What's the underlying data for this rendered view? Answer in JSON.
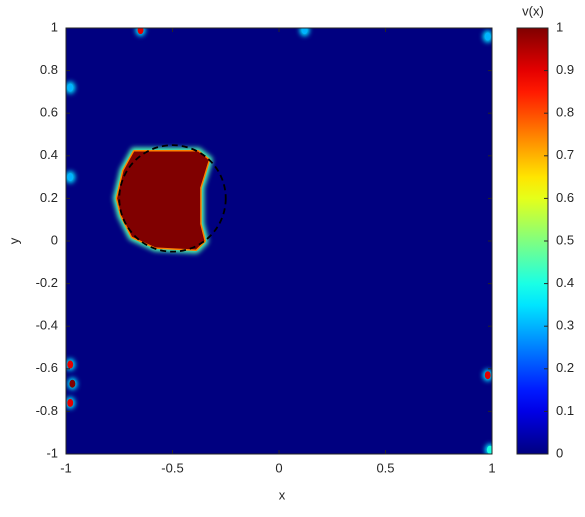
{
  "chart_data": {
    "type": "heatmap",
    "colormap": "jet",
    "xlabel": "x",
    "ylabel": "y",
    "colorbar_title": "v(x)",
    "xlim": [
      -1,
      1
    ],
    "ylim": [
      -1,
      1
    ],
    "xticks": [
      -1,
      -0.5,
      0,
      0.5,
      1
    ],
    "yticks": [
      -1,
      -0.8,
      -0.6,
      -0.4,
      -0.2,
      0,
      0.2,
      0.4,
      0.6,
      0.8,
      1
    ],
    "clim": [
      0,
      1
    ],
    "cticks": [
      0,
      0.1,
      0.2,
      0.3,
      0.4,
      0.5,
      0.6,
      0.7,
      0.8,
      0.9,
      1
    ],
    "background": 0,
    "regions": [
      {
        "value": 1,
        "points": [
          [
            -0.68,
            0.42
          ],
          [
            -0.38,
            0.42
          ],
          [
            -0.33,
            0.38
          ],
          [
            -0.37,
            0.25
          ],
          [
            -0.37,
            0.08
          ],
          [
            -0.35,
            0.0
          ],
          [
            -0.39,
            -0.04
          ],
          [
            -0.58,
            -0.03
          ],
          [
            -0.69,
            0.02
          ],
          [
            -0.74,
            0.12
          ],
          [
            -0.76,
            0.2
          ],
          [
            -0.73,
            0.33
          ]
        ]
      }
    ],
    "spots": [
      {
        "x": -0.65,
        "y": 0.99,
        "value": 0.9
      },
      {
        "x": -0.98,
        "y": 0.72,
        "value": 0.3
      },
      {
        "x": -0.98,
        "y": 0.3,
        "value": 0.3
      },
      {
        "x": -0.98,
        "y": -0.58,
        "value": 0.9
      },
      {
        "x": -0.97,
        "y": -0.67,
        "value": 1
      },
      {
        "x": -0.98,
        "y": -0.76,
        "value": 0.9
      },
      {
        "x": 0.98,
        "y": -0.63,
        "value": 0.9
      },
      {
        "x": 0.12,
        "y": 0.99,
        "value": 0.3
      },
      {
        "x": 0.98,
        "y": 0.96,
        "value": 0.3
      },
      {
        "x": 0.99,
        "y": -0.98,
        "value": 0.4
      }
    ],
    "reference_circle": {
      "center": [
        -0.5,
        0.2
      ],
      "radius": 0.25
    }
  }
}
